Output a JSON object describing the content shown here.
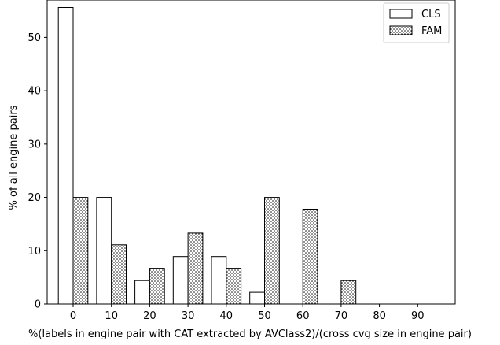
{
  "chart_data": {
    "type": "bar",
    "xlabel": "%(labels in engine pair with CAT extracted by AVClass2)/(cross cvg size in engine pair)",
    "ylabel": "% of all engine pairs",
    "categories": [
      "0",
      "10",
      "20",
      "30",
      "40",
      "50",
      "60",
      "70",
      "80",
      "90"
    ],
    "ylim": [
      0,
      57
    ],
    "yticks": [
      "0",
      "10",
      "20",
      "30",
      "40",
      "50"
    ],
    "legend_position": "top-right",
    "series": [
      {
        "name": "CLS",
        "values": [
          55.6,
          20.0,
          4.4,
          8.9,
          8.9,
          2.2,
          0,
          0,
          0,
          0
        ],
        "style": "plain"
      },
      {
        "name": "FAM",
        "values": [
          20.0,
          11.1,
          6.7,
          13.3,
          6.7,
          20.0,
          17.8,
          4.4,
          0,
          0
        ],
        "style": "dotted"
      }
    ],
    "colors": {
      "bar_edge": "#000000",
      "bar_fill": "#ffffff"
    }
  }
}
